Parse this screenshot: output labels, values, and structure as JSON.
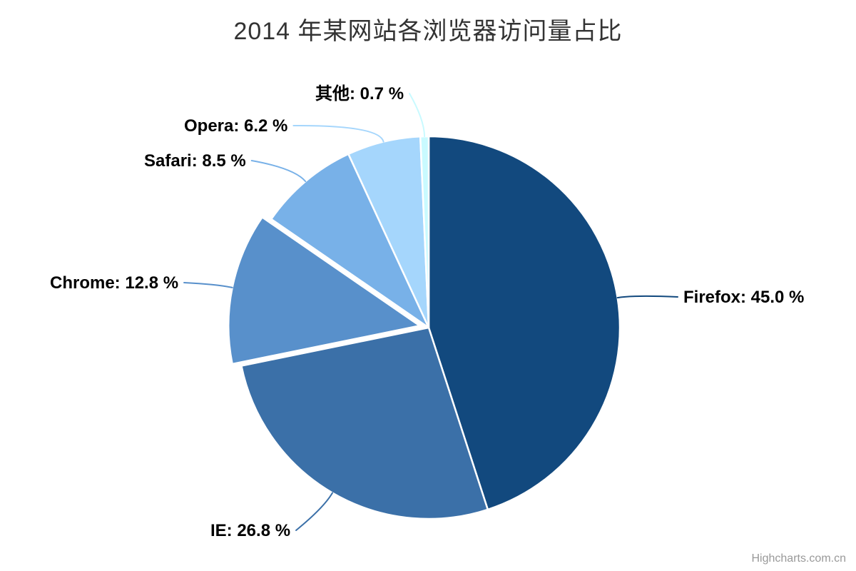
{
  "chart_data": {
    "type": "pie",
    "title": "2014 年某网站各浏览器访问量占比",
    "legend": "none",
    "start_angle_deg": 0,
    "direction": "clockwise",
    "label_format": "{name}: {value} %",
    "points": [
      {
        "name": "Firefox",
        "value": 45.0,
        "label": "Firefox: 45.0 %",
        "color": "#12497E",
        "sliced": false
      },
      {
        "name": "IE",
        "value": 26.8,
        "label": "IE: 26.8 %",
        "color": "#3B70A8",
        "sliced": false
      },
      {
        "name": "Chrome",
        "value": 12.8,
        "label": "Chrome: 12.8 %",
        "color": "#5890CB",
        "sliced": true
      },
      {
        "name": "Safari",
        "value": 8.5,
        "label": "Safari: 8.5 %",
        "color": "#78B1E8",
        "sliced": false
      },
      {
        "name": "Opera",
        "value": 6.2,
        "label": "Opera: 6.2 %",
        "color": "#A5D6FC",
        "sliced": false
      },
      {
        "name": "其他",
        "value": 0.7,
        "label": "其他: 0.7 %",
        "color": "#C9FAFF",
        "sliced": false
      }
    ],
    "label_text_color": "#000000",
    "title_color": "#333333",
    "background_color": "#ffffff"
  },
  "credits": {
    "label": "Highcharts.com.cn"
  }
}
